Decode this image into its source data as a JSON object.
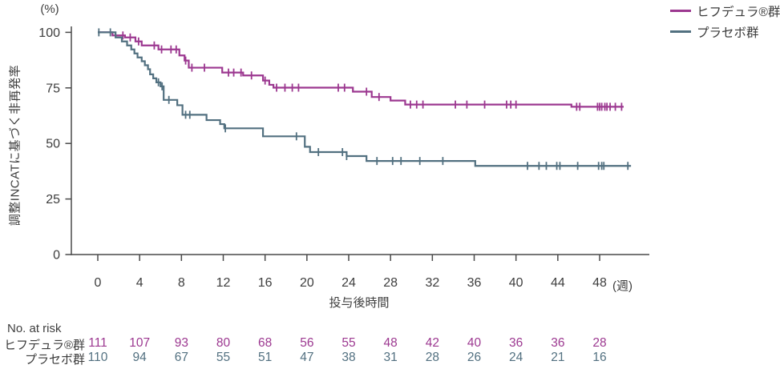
{
  "axes": {
    "y_unit": "(%)",
    "x_unit": "(週)",
    "y_title": "調整INCATに基づく非再発率",
    "x_title": "投与後時間"
  },
  "colors": {
    "hifdura": "#9c3890",
    "placebo": "#527080",
    "axis": "#4a4a4a",
    "text": "#3e3e3e"
  },
  "legend": {
    "items": [
      {
        "label": "ヒフデュラ®群",
        "color": "#9c3890"
      },
      {
        "label": "プラセボ群",
        "color": "#527080"
      }
    ]
  },
  "chart_data": {
    "type": "line",
    "subtype": "kaplan-meier-step",
    "title": "",
    "xlabel": "投与後時間 (週)",
    "ylabel": "調整INCATに基づく非再発率 (%)",
    "xlim": [
      0,
      52.8
    ],
    "ylim": [
      0,
      100
    ],
    "x_ticks": [
      0,
      4,
      8,
      12,
      16,
      20,
      24,
      28,
      32,
      36,
      40,
      44,
      48
    ],
    "y_ticks": [
      0,
      25,
      50,
      75,
      100
    ],
    "grid": false,
    "legend_position": "top-right",
    "series": [
      {
        "name": "ヒフデュラ®群",
        "color": "#9c3890",
        "end_week": 50.3,
        "points": [
          [
            0,
            100
          ],
          [
            1.4,
            98.6
          ],
          [
            2.6,
            97.7
          ],
          [
            3.6,
            95.9
          ],
          [
            4.2,
            94.1
          ],
          [
            5.8,
            92.3
          ],
          [
            7.8,
            89.6
          ],
          [
            8.3,
            87.3
          ],
          [
            8.7,
            84.1
          ],
          [
            11.9,
            81.9
          ],
          [
            13.9,
            80.6
          ],
          [
            15.8,
            78.3
          ],
          [
            16.4,
            76.4
          ],
          [
            16.8,
            75.1
          ],
          [
            24.4,
            73.3
          ],
          [
            26.2,
            70.9
          ],
          [
            28.0,
            69.3
          ],
          [
            29.4,
            67.5
          ],
          [
            45.3,
            66.5
          ]
        ],
        "censor_weeks": [
          2.4,
          3.1,
          3.9,
          5.4,
          6.1,
          7.0,
          7.5,
          8.4,
          9.0,
          10.2,
          12.5,
          13.0,
          13.7,
          14.7,
          16.0,
          17.1,
          17.9,
          18.6,
          19.2,
          23.0,
          23.6,
          25.7,
          26.9,
          29.9,
          30.5,
          31.1,
          34.2,
          35.3,
          37.0,
          39.1,
          39.5,
          40.0,
          45.8,
          46.1,
          47.8,
          48.0,
          48.2,
          48.5,
          48.7,
          49.0,
          49.5,
          50.1
        ]
      },
      {
        "name": "プラセボ群",
        "color": "#527080",
        "end_week": 51.0,
        "points": [
          [
            0,
            100
          ],
          [
            1.7,
            97.7
          ],
          [
            2.3,
            95.9
          ],
          [
            2.8,
            94.1
          ],
          [
            3.2,
            92.3
          ],
          [
            3.5,
            90.5
          ],
          [
            3.8,
            88.7
          ],
          [
            4.2,
            87.0
          ],
          [
            4.5,
            85.2
          ],
          [
            4.8,
            83.4
          ],
          [
            5.0,
            81.1
          ],
          [
            5.3,
            79.3
          ],
          [
            5.6,
            77.5
          ],
          [
            6.0,
            75.7
          ],
          [
            6.3,
            69.6
          ],
          [
            7.6,
            67.2
          ],
          [
            8.1,
            62.9
          ],
          [
            10.4,
            60.5
          ],
          [
            11.7,
            58.7
          ],
          [
            12.1,
            56.8
          ],
          [
            15.8,
            53.2
          ],
          [
            19.8,
            48.5
          ],
          [
            20.3,
            46.1
          ],
          [
            23.8,
            44.3
          ],
          [
            25.7,
            42.1
          ],
          [
            36.1,
            39.9
          ]
        ],
        "censor_weeks": [
          0.1,
          1.2,
          5.8,
          6.15,
          6.8,
          8.4,
          8.8,
          12.2,
          19.0,
          21.1,
          23.4,
          23.8,
          26.7,
          28.2,
          29.0,
          30.8,
          33.0,
          41.1,
          42.2,
          42.9,
          43.9,
          44.2,
          45.9,
          47.9,
          48.2,
          48.4,
          50.7
        ]
      }
    ]
  },
  "risk_table": {
    "header": "No. at risk",
    "weeks": [
      0,
      4,
      8,
      12,
      16,
      20,
      24,
      28,
      32,
      36,
      40,
      44,
      48
    ],
    "rows": [
      {
        "label": "ヒフデュラ®群",
        "color": "#9c3890",
        "values": [
          111,
          107,
          93,
          80,
          68,
          56,
          55,
          48,
          42,
          40,
          36,
          36,
          28
        ]
      },
      {
        "label": "プラセボ群",
        "color": "#527080",
        "values": [
          110,
          94,
          67,
          55,
          51,
          47,
          38,
          31,
          28,
          26,
          24,
          21,
          16
        ]
      }
    ]
  }
}
